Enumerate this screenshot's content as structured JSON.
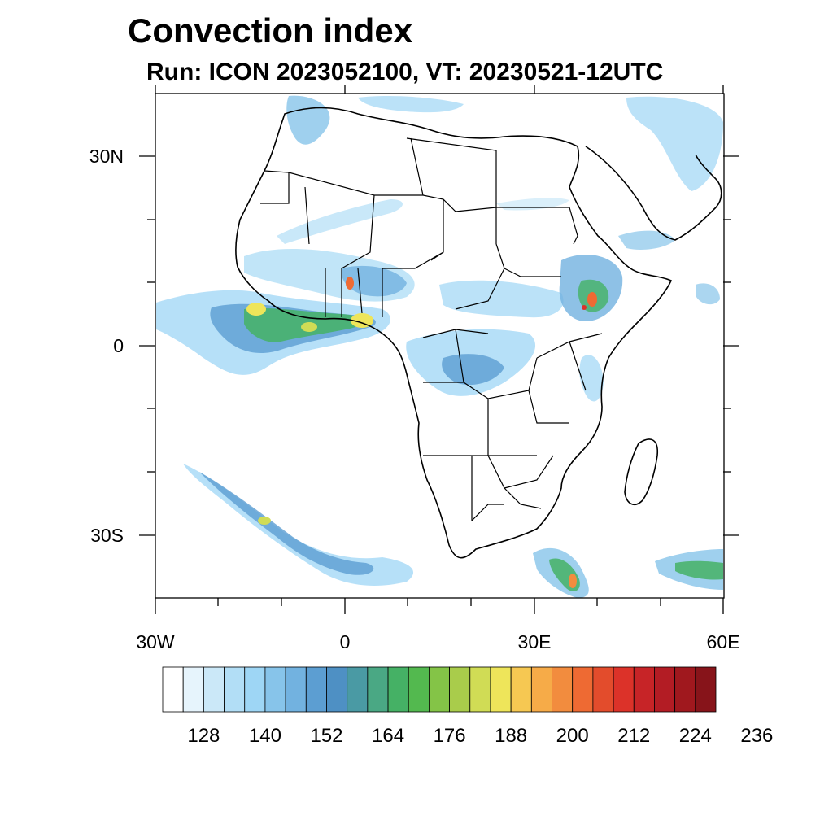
{
  "header": {
    "title": "Convection index",
    "subtitle": "Run: ICON 2023052100,  VT: 20230521-12UTC"
  },
  "map": {
    "region": "Africa",
    "x_axis": {
      "range": [
        -30,
        60
      ],
      "ticks": [
        "30W",
        "0",
        "30E",
        "60E"
      ]
    },
    "y_axis": {
      "range": [
        -40,
        40
      ],
      "ticks": [
        "30N",
        "0",
        "30S"
      ]
    }
  },
  "colorbar": {
    "colors": [
      "#ffffff",
      "#e6f4fc",
      "#cbe8f8",
      "#b2def6",
      "#9ed6f5",
      "#87c4ea",
      "#72b2e0",
      "#5c9ed2",
      "#4e90c4",
      "#4a9aa4",
      "#4aa884",
      "#45b165",
      "#53b94f",
      "#84c447",
      "#a9cc4b",
      "#d0dc55",
      "#eee55a",
      "#f6c852",
      "#f6ab48",
      "#f28c3e",
      "#ee6a33",
      "#e34c2c",
      "#dc3229",
      "#c72427",
      "#b31c24",
      "#a0181e",
      "#87141a"
    ],
    "tick_labels": [
      "128",
      "140",
      "152",
      "164",
      "176",
      "188",
      "200",
      "212",
      "224",
      "236"
    ]
  }
}
